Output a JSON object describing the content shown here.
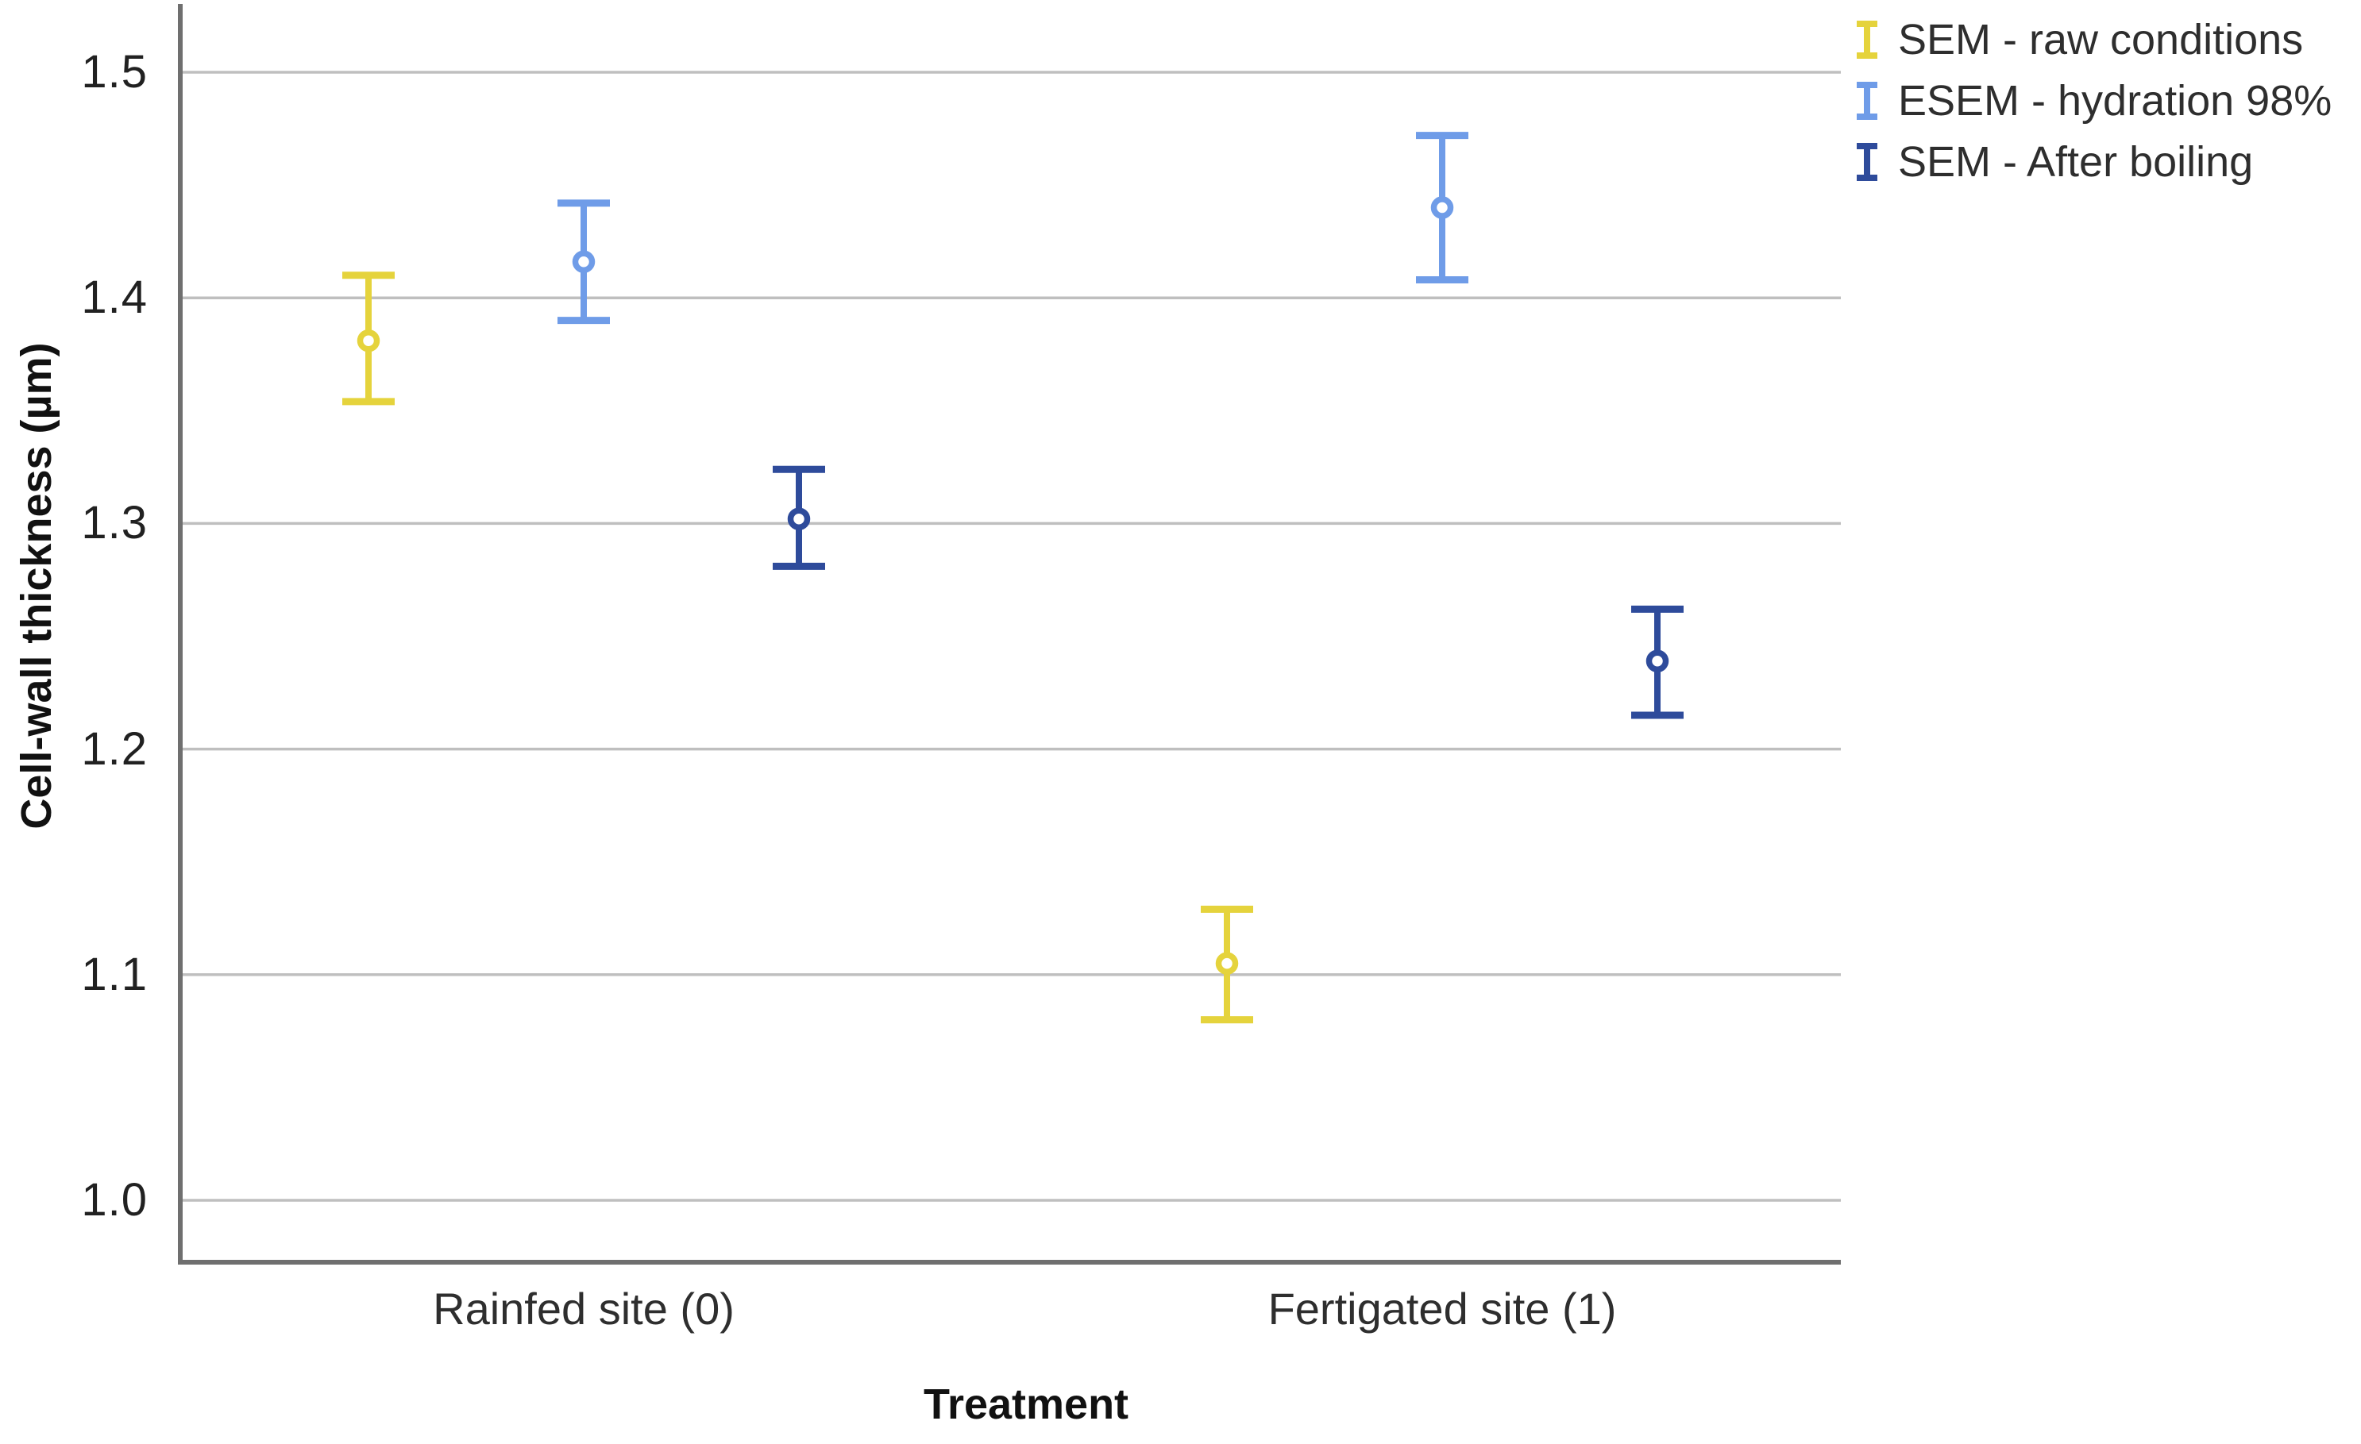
{
  "chart_data": {
    "type": "scatter",
    "subtype": "point-estimates-with-error-bars",
    "title": "",
    "xlabel": "Treatment",
    "ylabel": "Cell-wall thickness (µm)",
    "categories": [
      "Rainfed site (0)",
      "Fertigated site (1)"
    ],
    "y_ticks": [
      "1.5",
      "1.4",
      "1.3",
      "1.2",
      "1.1",
      "1.0"
    ],
    "y_axis_range": [
      0.97,
      1.53
    ],
    "grid": "horizontal gridlines at 1.0, 1.1, 1.2, 1.3, 1.4, 1.5",
    "legend_position": "top-right",
    "grid_color": "#BFBFBF",
    "axis_color": "#6F6F6F",
    "background_color": "#FFFFFF",
    "series": [
      {
        "name": "SEM - raw conditions",
        "color": "#E5D33C",
        "points": [
          {
            "category": "Rainfed site (0)",
            "mean": 1.381,
            "ci_low": 1.354,
            "ci_high": 1.41
          },
          {
            "category": "Fertigated site (1)",
            "mean": 1.105,
            "ci_low": 1.08,
            "ci_high": 1.129
          }
        ]
      },
      {
        "name": "ESEM - hydration 98%",
        "color": "#6F9CE8",
        "points": [
          {
            "category": "Rainfed site (0)",
            "mean": 1.416,
            "ci_low": 1.39,
            "ci_high": 1.442
          },
          {
            "category": "Fertigated site (1)",
            "mean": 1.44,
            "ci_low": 1.408,
            "ci_high": 1.472
          }
        ]
      },
      {
        "name": "SEM - After boiling",
        "color": "#2E4B9B",
        "points": [
          {
            "category": "Rainfed site (0)",
            "mean": 1.302,
            "ci_low": 1.281,
            "ci_high": 1.324
          },
          {
            "category": "Fertigated site (1)",
            "mean": 1.239,
            "ci_low": 1.215,
            "ci_high": 1.262
          }
        ]
      }
    ]
  }
}
